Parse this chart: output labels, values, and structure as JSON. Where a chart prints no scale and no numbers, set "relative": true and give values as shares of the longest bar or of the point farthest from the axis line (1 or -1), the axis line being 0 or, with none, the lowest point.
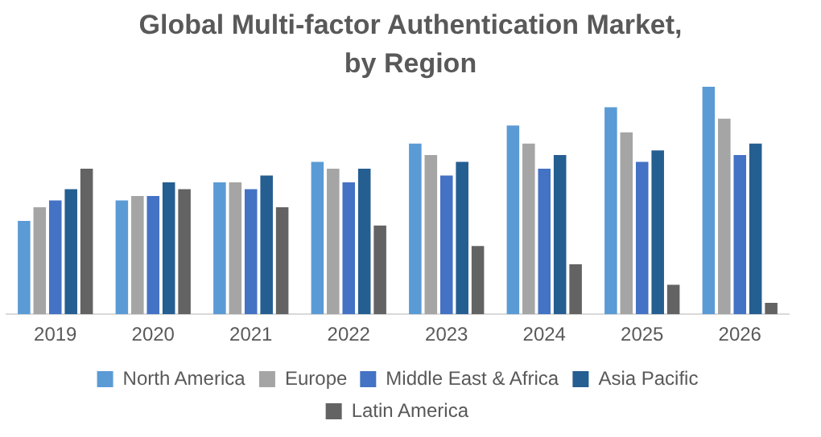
{
  "chart_data": {
    "type": "bar",
    "title": "Global Multi-factor Authentication Market, by Region",
    "relative": true,
    "legend": "bottom",
    "grid": false,
    "categories": [
      "2019",
      "2020",
      "2021",
      "2022",
      "2023",
      "2024",
      "2025",
      "2026"
    ],
    "series": [
      {
        "name": "North America",
        "color": "#5b9bd5",
        "values": [
          0.41,
          0.5,
          0.58,
          0.67,
          0.75,
          0.83,
          0.91,
          1
        ]
      },
      {
        "name": "Europe",
        "color": "#a5a5a5",
        "values": [
          0.47,
          0.52,
          0.58,
          0.64,
          0.7,
          0.75,
          0.8,
          0.86
        ]
      },
      {
        "name": "Middle East & Africa",
        "color": "#4472c4",
        "values": [
          0.5,
          0.52,
          0.55,
          0.58,
          0.61,
          0.64,
          0.67,
          0.7
        ]
      },
      {
        "name": "Asia Pacific",
        "color": "#255e91",
        "values": [
          0.55,
          0.58,
          0.61,
          0.64,
          0.67,
          0.7,
          0.72,
          0.75
        ]
      },
      {
        "name": "Latin America",
        "color": "#636363",
        "values": [
          0.64,
          0.55,
          0.47,
          0.39,
          0.3,
          0.22,
          0.13,
          0.05
        ]
      }
    ]
  }
}
